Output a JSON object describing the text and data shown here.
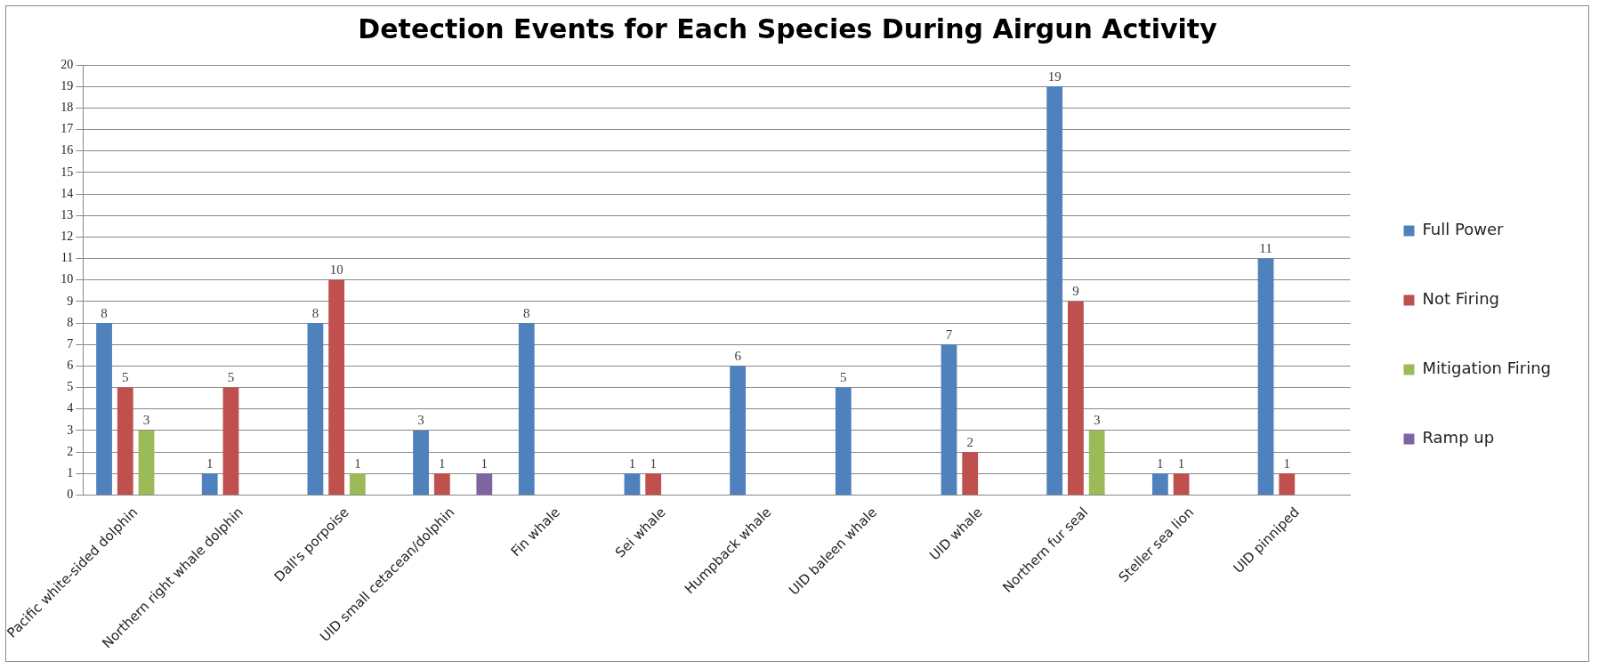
{
  "chart_data": {
    "type": "bar",
    "title": "Detection Events for Each Species During Airgun Activity",
    "categories": [
      "Pacific white-sided dolphin",
      "Northern right whale dolphin",
      "Dall's porpoise",
      "UID small cetacean/dolphin",
      "Fin whale",
      "Sei whale",
      "Humpback whale",
      "UID baleen whale",
      "UID whale",
      "Northern fur seal",
      "Steller sea lion",
      "UID pinniped"
    ],
    "series": [
      {
        "name": "Full Power",
        "color": "#4f81bd",
        "values": [
          8,
          1,
          8,
          3,
          8,
          1,
          6,
          5,
          7,
          19,
          1,
          11
        ]
      },
      {
        "name": "Not Firing",
        "color": "#c0504d",
        "values": [
          5,
          5,
          10,
          1,
          null,
          1,
          null,
          null,
          2,
          9,
          1,
          1
        ]
      },
      {
        "name": "Mitigation Firing",
        "color": "#9bbb59",
        "values": [
          3,
          null,
          1,
          null,
          null,
          null,
          null,
          null,
          null,
          3,
          null,
          null
        ]
      },
      {
        "name": "Ramp up",
        "color": "#8064a2",
        "values": [
          null,
          null,
          null,
          1,
          null,
          null,
          null,
          null,
          null,
          null,
          null,
          null
        ]
      }
    ],
    "ylim": [
      0,
      20
    ],
    "yticks": [
      0,
      1,
      2,
      3,
      4,
      5,
      6,
      7,
      8,
      9,
      10,
      11,
      12,
      13,
      14,
      15,
      16,
      17,
      18,
      19,
      20
    ],
    "grid": "y",
    "legend": "right",
    "data_labels": true
  }
}
